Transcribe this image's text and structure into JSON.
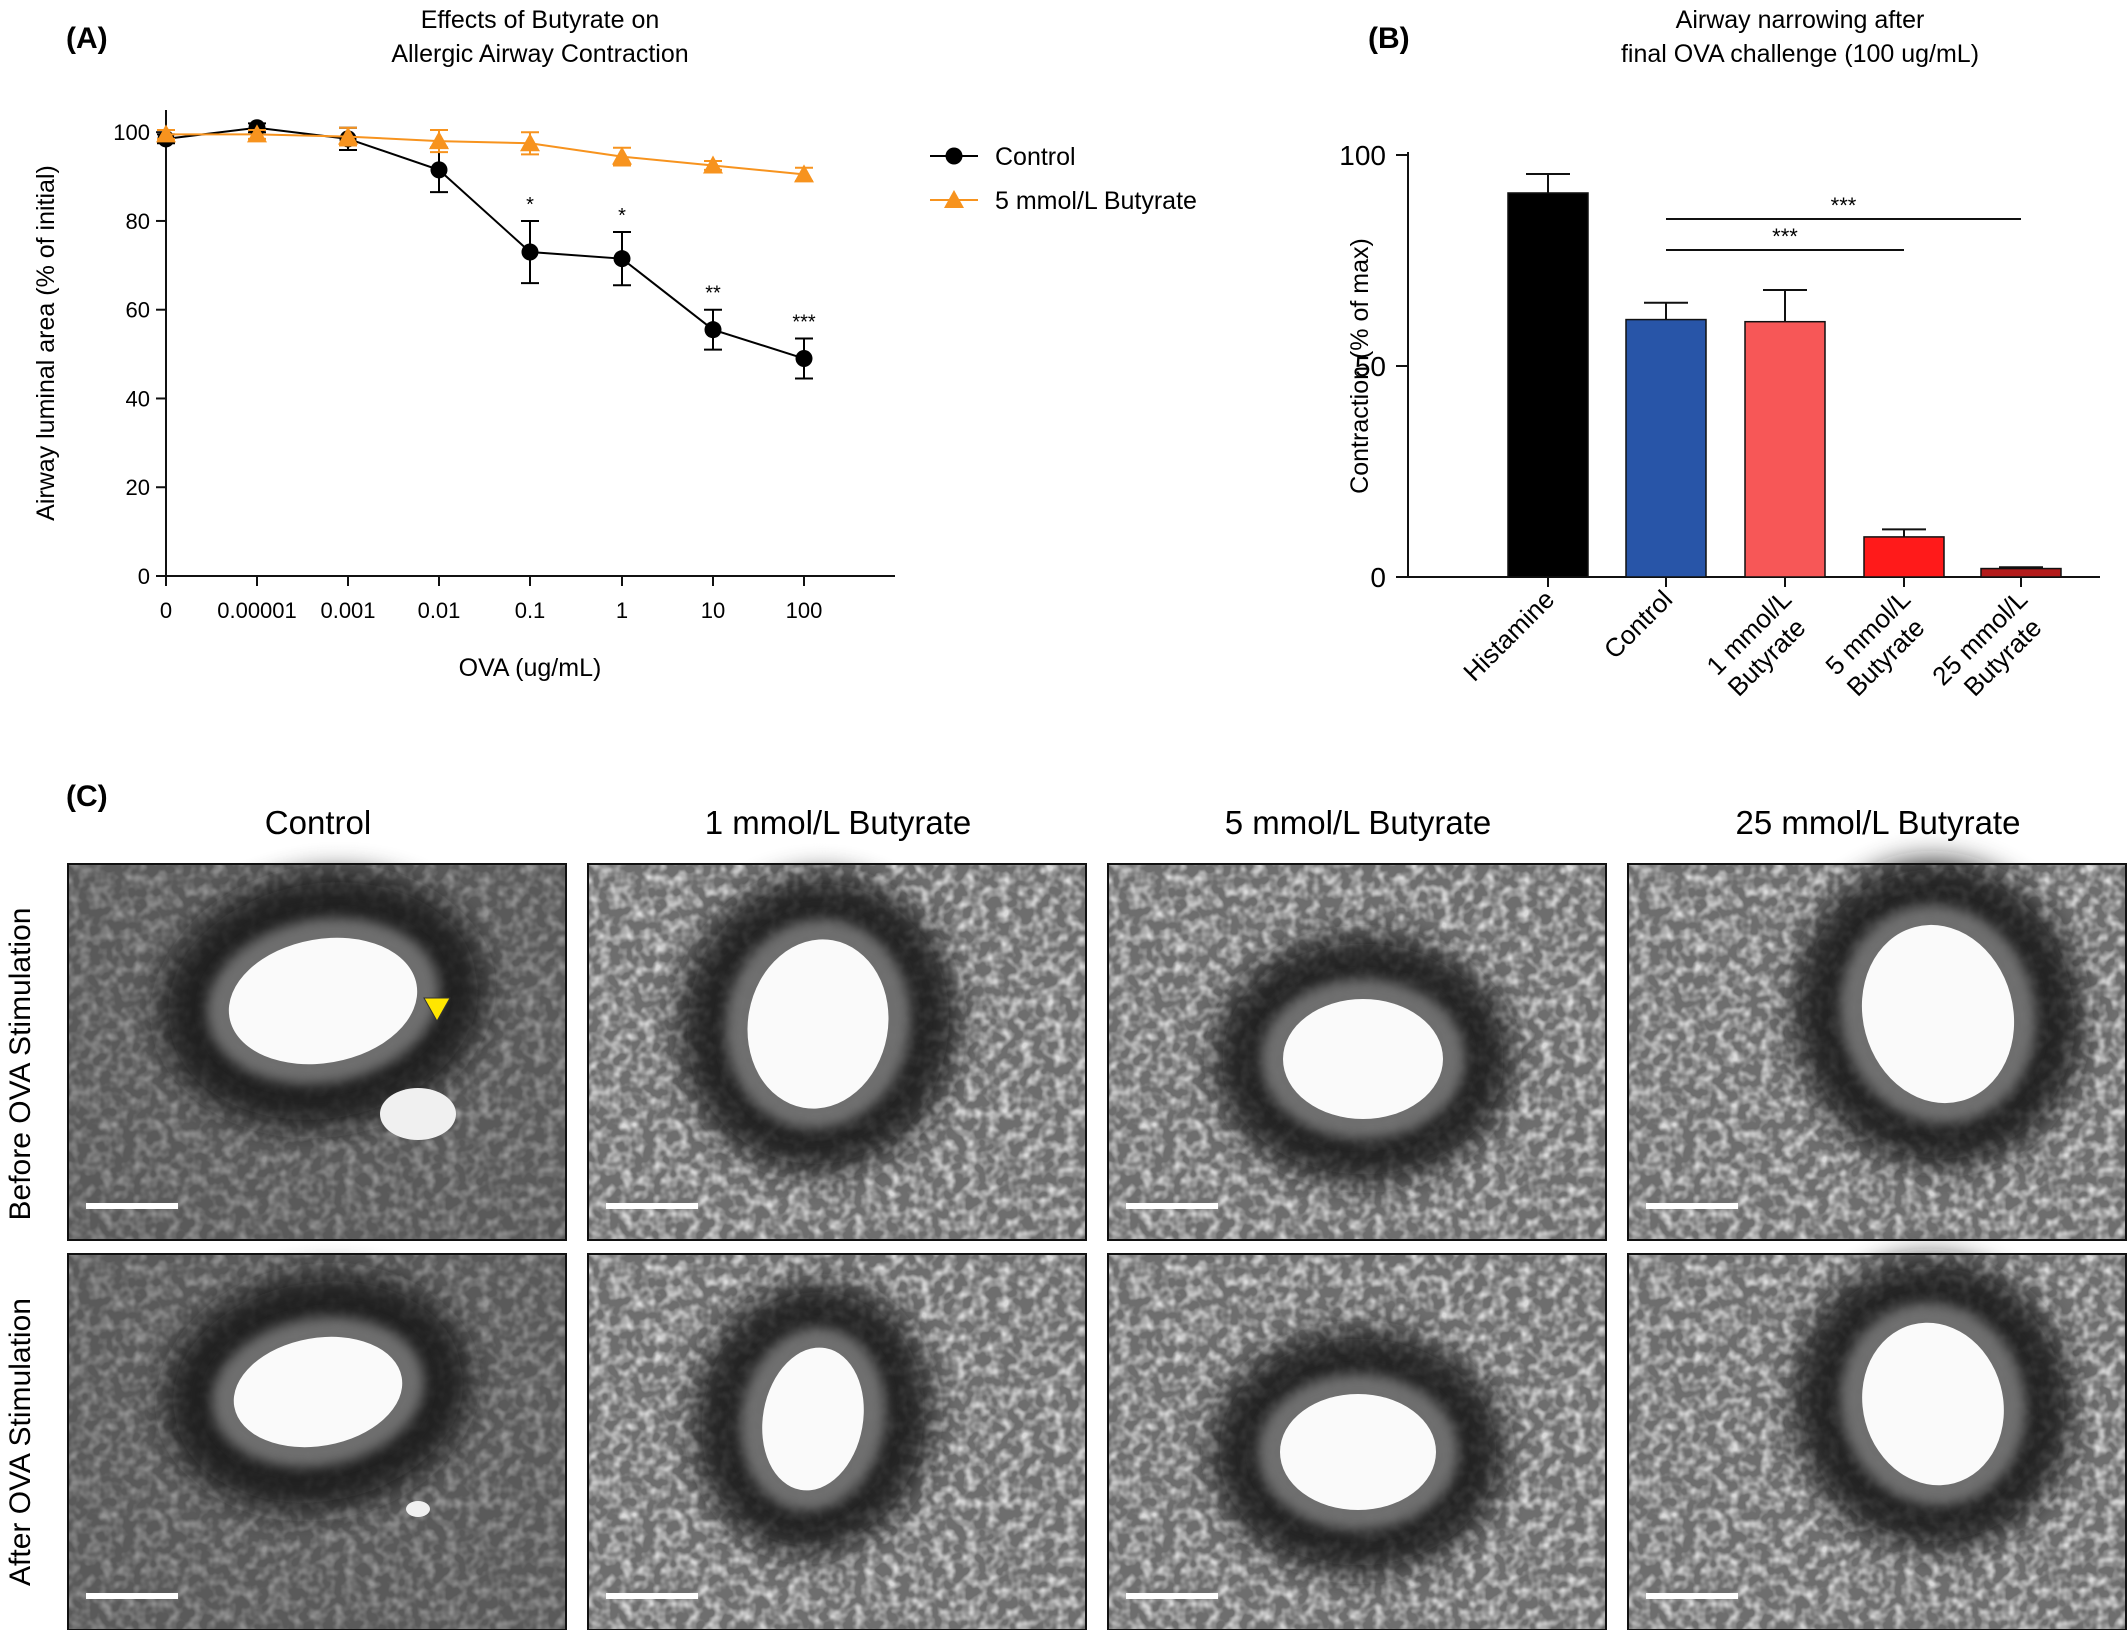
{
  "panels": {
    "a": {
      "label": "(A)"
    },
    "b": {
      "label": "(B)"
    },
    "c": {
      "label": "(C)",
      "columns": [
        "Control",
        "1 mmol/L Butyrate",
        "5 mmol/L Butyrate",
        "25 mmol/L Butyrate"
      ],
      "rows": [
        "Before OVA Stimulation",
        "After OVA Stimulation"
      ],
      "arrow_color": "#ffe600"
    }
  },
  "chart_data": [
    {
      "type": "line",
      "title": "Effects of Butyrate on\nAllergic Airway Contraction",
      "xlabel": "OVA (ug/mL)",
      "ylabel": "Airway luminal area (% of initial)",
      "x_scale": "categorical",
      "categories": [
        "0",
        "0.00001",
        "0.001",
        "0.01",
        "0.1",
        "1",
        "10",
        "100"
      ],
      "ylim": [
        0,
        105
      ],
      "yticks": [
        0,
        20,
        40,
        60,
        80,
        100
      ],
      "legend_position": "right",
      "series": [
        {
          "name": "Control",
          "color": "#000000",
          "marker": "circle",
          "values": [
            98.5,
            101,
            98.5,
            91.5,
            73,
            71.5,
            55.5,
            49
          ],
          "error": [
            1,
            1,
            2.5,
            5,
            7,
            6,
            4.5,
            4.5
          ],
          "significance": [
            "",
            "",
            "",
            "",
            "*",
            "*",
            "**",
            "***"
          ]
        },
        {
          "name": "5 mmol/L Butyrate",
          "color": "#f7931e",
          "marker": "triangle",
          "values": [
            99.5,
            99.5,
            99,
            98,
            97.5,
            94.5,
            92.5,
            90.5
          ],
          "error": [
            1,
            1,
            2,
            2.5,
            2.5,
            2,
            1,
            1.5
          ]
        }
      ]
    },
    {
      "type": "bar",
      "title": "Airway narrowing after\nfinal OVA challenge (100 ug/mL)",
      "ylabel": "Contraction (% of max)",
      "categories": [
        "Histamine",
        "Control",
        "1 mmol/L Butyrate",
        "5 mmol/L Butyrate",
        "25 mmol/L Butyrate"
      ],
      "category_lines": [
        [
          "Histamine"
        ],
        [
          "Control"
        ],
        [
          "1 mmol/L",
          "Butyrate"
        ],
        [
          "5 mmol/L",
          "Butyrate"
        ],
        [
          "25 mmol/L",
          "Butyrate"
        ]
      ],
      "values": [
        91,
        61,
        60.5,
        9.5,
        2
      ],
      "errors": [
        4.5,
        4,
        7.5,
        1.8,
        0.3
      ],
      "colors": [
        "#000000",
        "#2855a8",
        "#f75757",
        "#ff1a1a",
        "#b31b1b"
      ],
      "ylim": [
        0,
        100
      ],
      "yticks": [
        0,
        50,
        100
      ],
      "comparisons": [
        {
          "from": "Control",
          "to": "5 mmol/L Butyrate",
          "label": "***"
        },
        {
          "from": "Control",
          "to": "25 mmol/L Butyrate",
          "label": "***"
        }
      ]
    }
  ]
}
